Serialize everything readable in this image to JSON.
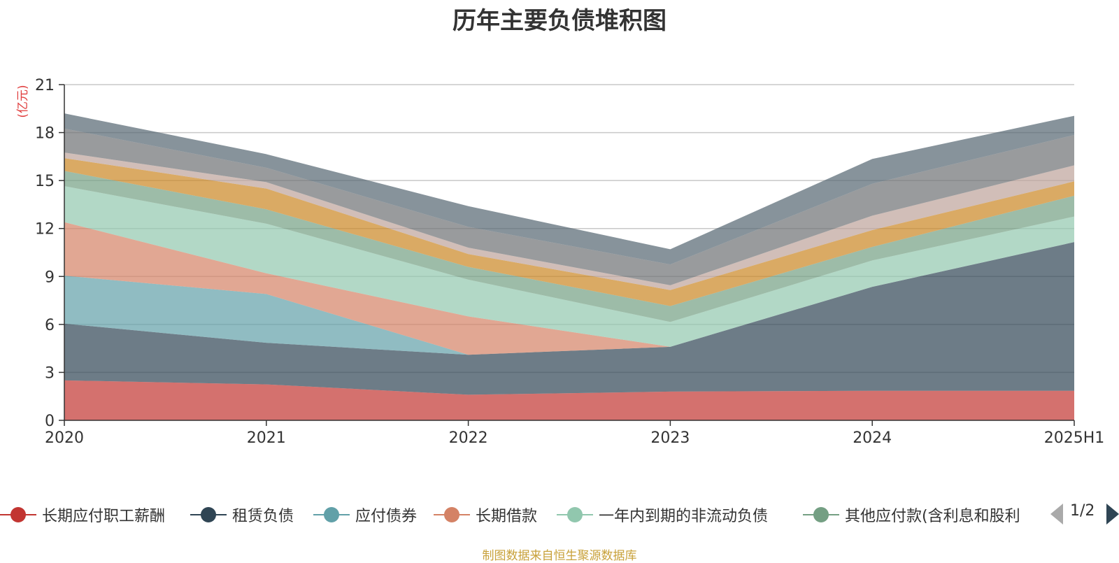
{
  "chart_data": {
    "type": "area",
    "stacked": true,
    "title": "历年主要负债堆积图",
    "ylabel": "(亿元)",
    "xlabel": "",
    "categories": [
      "2020",
      "2021",
      "2022",
      "2023",
      "2024",
      "2025H1"
    ],
    "ylim": [
      0,
      21
    ],
    "yticks": [
      0,
      3,
      6,
      9,
      12,
      15,
      18,
      21
    ],
    "grid": true,
    "legend_position": "bottom",
    "series": [
      {
        "name": "长期应付职工薪酬",
        "color": "#c23531",
        "values": [
          2.5,
          2.25,
          1.6,
          1.8,
          1.85,
          1.85
        ]
      },
      {
        "name": "租赁负债",
        "color": "#2f4554",
        "values": [
          3.55,
          2.6,
          2.5,
          2.8,
          6.5,
          9.3
        ]
      },
      {
        "name": "应付债券",
        "color": "#61a0a8",
        "values": [
          3.0,
          3.05,
          0.0,
          0.0,
          0.0,
          0.0
        ]
      },
      {
        "name": "长期借款",
        "color": "#d48265",
        "values": [
          3.35,
          1.3,
          2.4,
          0.0,
          0.0,
          0.0
        ]
      },
      {
        "name": "一年内到期的非流动负债",
        "color": "#91c7ae",
        "values": [
          2.25,
          3.1,
          2.3,
          1.55,
          1.65,
          1.6
        ]
      },
      {
        "name": "其他应付款(含利息和股利)",
        "color": "#749f83",
        "values": [
          0.95,
          0.9,
          0.8,
          1.0,
          0.85,
          1.3
        ]
      },
      {
        "name": "",
        "color": "#ca8622",
        "values": [
          0.8,
          1.3,
          0.8,
          1.0,
          1.05,
          0.9
        ]
      },
      {
        "name": "",
        "color": "#bda29a",
        "values": [
          0.35,
          0.4,
          0.4,
          0.3,
          0.9,
          1.0
        ]
      },
      {
        "name": "",
        "color": "#6e7074",
        "values": [
          1.5,
          0.9,
          1.3,
          1.3,
          2.0,
          1.9
        ]
      },
      {
        "name": "",
        "color": "#546570",
        "values": [
          0.95,
          0.85,
          1.3,
          0.95,
          1.55,
          1.2
        ]
      }
    ]
  },
  "legend": {
    "page_indicator": "1/2",
    "visible_labels": [
      "长期应付职工薪酬",
      "租赁负债",
      "应付债券",
      "长期借款",
      "一年内到期的非流动负债",
      "其他应付款(含利息和股利"
    ]
  },
  "source_note": "制图数据来自恒生聚源数据库"
}
